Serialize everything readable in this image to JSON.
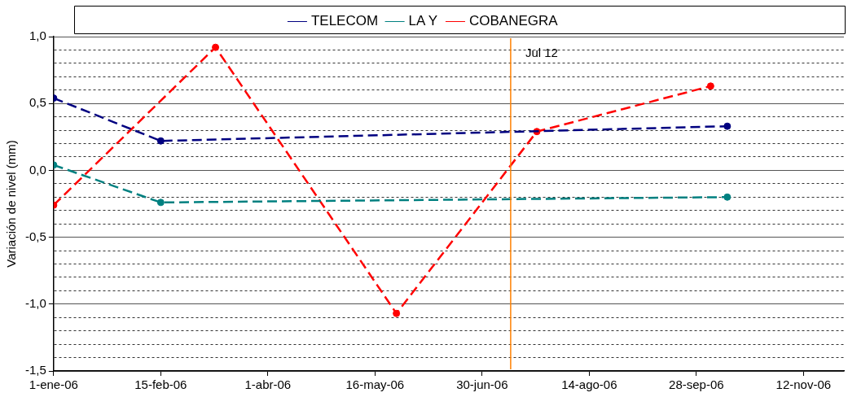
{
  "chart_data": {
    "type": "line",
    "ylabel": "Variación de nivel (mm)",
    "series": [
      {
        "name": "TELECOM",
        "color": "#000080",
        "x": [
          "2006-01-01",
          "2006-02-15",
          "2006-10-11"
        ],
        "values": [
          0.54,
          0.22,
          0.33
        ]
      },
      {
        "name": "LA Y",
        "color": "#008080",
        "x": [
          "2006-01-01",
          "2006-02-15",
          "2006-10-11"
        ],
        "values": [
          0.04,
          -0.24,
          -0.2
        ]
      },
      {
        "name": "COBANEGRA",
        "color": "#ff0000",
        "x": [
          "2006-01-01",
          "2006-03-10",
          "2006-05-25",
          "2006-07-23",
          "2006-10-04"
        ],
        "values": [
          -0.26,
          0.92,
          -1.07,
          0.29,
          0.63
        ]
      }
    ],
    "xlim": [
      "2006-01-01",
      "2006-11-29"
    ],
    "xticks": [
      {
        "value": "2006-01-01",
        "label": "1-ene-06"
      },
      {
        "value": "2006-02-15",
        "label": "15-feb-06"
      },
      {
        "value": "2006-04-01",
        "label": "1-abr-06"
      },
      {
        "value": "2006-05-16",
        "label": "16-may-06"
      },
      {
        "value": "2006-06-30",
        "label": "30-jun-06"
      },
      {
        "value": "2006-08-14",
        "label": "14-ago-06"
      },
      {
        "value": "2006-09-28",
        "label": "28-sep-06"
      },
      {
        "value": "2006-11-12",
        "label": "12-nov-06"
      }
    ],
    "ylim": [
      -1.5,
      1.0
    ],
    "yticks": [
      {
        "value": -1.5,
        "label": "-1,5"
      },
      {
        "value": -1.4,
        "label": null
      },
      {
        "value": -1.3,
        "label": null
      },
      {
        "value": -1.2,
        "label": null
      },
      {
        "value": -1.1,
        "label": null
      },
      {
        "value": -1.0,
        "label": "-1,0"
      },
      {
        "value": -0.9,
        "label": null
      },
      {
        "value": -0.8,
        "label": null
      },
      {
        "value": -0.7,
        "label": null
      },
      {
        "value": -0.6,
        "label": null
      },
      {
        "value": -0.5,
        "label": "-0,5"
      },
      {
        "value": -0.4,
        "label": null
      },
      {
        "value": -0.3,
        "label": null
      },
      {
        "value": -0.2,
        "label": null
      },
      {
        "value": -0.1,
        "label": null
      },
      {
        "value": 0.0,
        "label": "0,0"
      },
      {
        "value": 0.1,
        "label": null
      },
      {
        "value": 0.2,
        "label": null
      },
      {
        "value": 0.3,
        "label": null
      },
      {
        "value": 0.4,
        "label": null
      },
      {
        "value": 0.5,
        "label": "0,5"
      },
      {
        "value": 0.6,
        "label": null
      },
      {
        "value": 0.7,
        "label": null
      },
      {
        "value": 0.8,
        "label": null
      },
      {
        "value": 0.9,
        "label": null
      },
      {
        "value": 1.0,
        "label": "1,0"
      }
    ],
    "ref_lines": [
      {
        "axis": "x",
        "value": "2006-07-12",
        "label": "Jul 12",
        "color": "#ff8000"
      }
    ],
    "grid": "y",
    "legend": "top",
    "marker": "circle",
    "line_style": "dashed"
  }
}
